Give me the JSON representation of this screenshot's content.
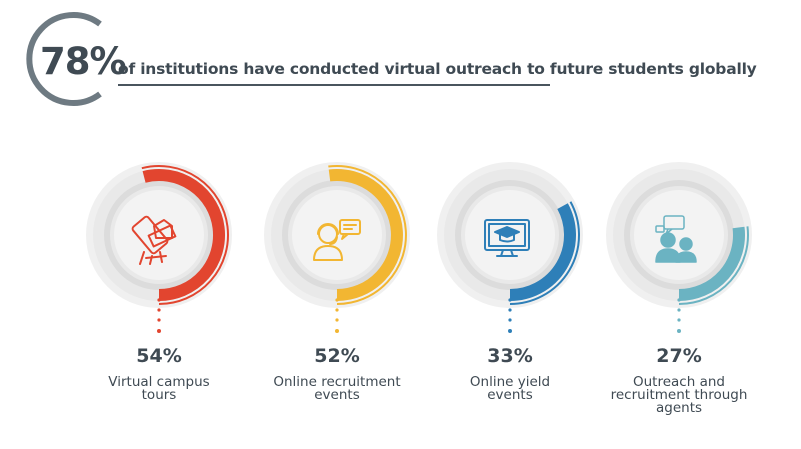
{
  "headline": {
    "percent": "78%",
    "text": "of institutions have conducted virtual outreach to future students globally"
  },
  "stats": [
    {
      "percent": "54%",
      "label_lines": [
        "Virtual campus",
        "tours"
      ],
      "value": 54,
      "color": "#e2452f",
      "icon": "phone-campus-icon"
    },
    {
      "percent": "52%",
      "label_lines": [
        "Online recruitment",
        "events"
      ],
      "value": 52,
      "color": "#f2b632",
      "icon": "headset-agent-icon"
    },
    {
      "percent": "33%",
      "label_lines": [
        "Online yield",
        "events"
      ],
      "value": 33,
      "color": "#2e7fb8",
      "icon": "monitor-graduation-icon"
    },
    {
      "percent": "27%",
      "label_lines": [
        "Outreach and",
        "recruitment through",
        "agents"
      ],
      "value": 27,
      "color": "#6bb3c2",
      "icon": "people-conversation-icon"
    }
  ]
}
